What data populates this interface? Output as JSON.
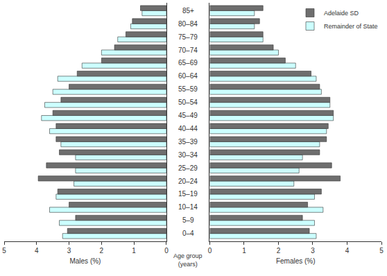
{
  "chart_data": [
    {
      "type": "bar",
      "orientation": "horizontal",
      "x_label": "Males (%)",
      "y_label": "Age group (years)",
      "categories": [
        "0–4",
        "5–9",
        "10–14",
        "15–19",
        "20–24",
        "25–29",
        "30–34",
        "35–39",
        "40–44",
        "45–49",
        "50–54",
        "55–59",
        "60–64",
        "65–69",
        "70–74",
        "75–79",
        "80–84",
        "85+"
      ],
      "series": [
        {
          "name": "Adelaide SD",
          "color": "#6e6e6e",
          "values": [
            3.05,
            2.8,
            3.0,
            3.35,
            3.95,
            3.7,
            3.3,
            3.4,
            3.4,
            3.5,
            3.25,
            3.0,
            2.75,
            2.0,
            1.6,
            1.25,
            1.05,
            0.8
          ]
        },
        {
          "name": "Remainder of State",
          "color": "#ccffff",
          "values": [
            3.2,
            3.3,
            3.6,
            3.4,
            2.85,
            2.8,
            2.8,
            3.25,
            3.6,
            3.85,
            3.75,
            3.5,
            3.35,
            2.6,
            2.0,
            1.5,
            1.1,
            0.75
          ]
        }
      ],
      "xlim": [
        5,
        0
      ],
      "xticks": [
        0,
        1,
        2,
        3,
        4,
        5
      ],
      "grid": false
    },
    {
      "type": "bar",
      "orientation": "horizontal",
      "x_label": "Females (%)",
      "categories": [
        "0–4",
        "5–9",
        "10–14",
        "15–19",
        "20–24",
        "25–29",
        "30–34",
        "35–39",
        "40–44",
        "45–49",
        "50–54",
        "55–59",
        "60–64",
        "65–69",
        "70–74",
        "75–79",
        "80–84",
        "85+"
      ],
      "series": [
        {
          "name": "Adelaide SD",
          "color": "#6e6e6e",
          "values": [
            2.9,
            2.7,
            2.85,
            3.25,
            3.8,
            3.55,
            3.2,
            3.4,
            3.45,
            3.6,
            3.5,
            3.2,
            2.95,
            2.2,
            1.85,
            1.55,
            1.45,
            1.55
          ]
        },
        {
          "name": "Remainder of State",
          "color": "#ccffff",
          "values": [
            3.1,
            3.05,
            3.3,
            3.05,
            2.45,
            2.6,
            2.7,
            3.2,
            3.4,
            3.6,
            3.5,
            3.25,
            3.1,
            2.5,
            2.0,
            1.55,
            1.3,
            1.3
          ]
        }
      ],
      "xlim": [
        0,
        5
      ],
      "xticks": [
        0,
        1,
        2,
        3,
        4,
        5
      ],
      "grid": false,
      "legend": "upper right"
    }
  ]
}
